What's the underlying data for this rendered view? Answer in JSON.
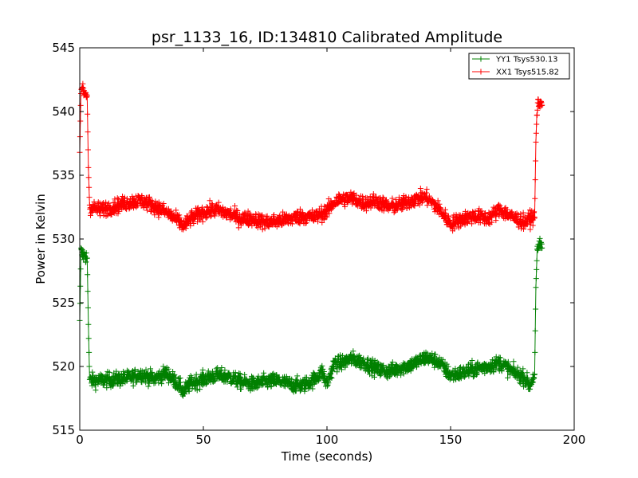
{
  "chart_data": {
    "type": "line",
    "title": "psr_1133_16, ID:134810 Calibrated Amplitude",
    "xlabel": "Time (seconds)",
    "ylabel": "Power in Kelvin",
    "xlim": [
      0,
      200
    ],
    "ylim": [
      515,
      545
    ],
    "xticks": [
      0,
      50,
      100,
      150,
      200
    ],
    "yticks": [
      515,
      520,
      525,
      530,
      535,
      540,
      545
    ],
    "grid": false,
    "legend_position": "top-right",
    "marker": "+",
    "series": [
      {
        "name": "YY1 Tsys530.13",
        "color": "#008000",
        "x": [
          0,
          0.5,
          1,
          1.5,
          2,
          2.5,
          3,
          3.5,
          4,
          8,
          15,
          20,
          25,
          30,
          35,
          40,
          42,
          45,
          50,
          55,
          60,
          65,
          70,
          75,
          80,
          85,
          90,
          95,
          98,
          100,
          103,
          105,
          110,
          115,
          120,
          125,
          130,
          135,
          140,
          145,
          150,
          155,
          160,
          165,
          170,
          175,
          180,
          182,
          184,
          184.5,
          185,
          185.5,
          186,
          186.5,
          187
        ],
        "y": [
          523.6,
          529.0,
          528.8,
          528.7,
          528.8,
          528.6,
          528.5,
          523.3,
          518.9,
          518.9,
          519.0,
          519.1,
          519.4,
          519.0,
          519.5,
          518.6,
          518.0,
          518.7,
          519.0,
          519.3,
          519.2,
          518.8,
          518.6,
          518.8,
          518.9,
          518.6,
          518.5,
          519.0,
          519.6,
          518.6,
          520.3,
          520.2,
          520.6,
          520.3,
          519.8,
          519.6,
          519.9,
          520.2,
          520.7,
          520.4,
          519.3,
          519.5,
          519.8,
          520.0,
          520.3,
          519.6,
          519.1,
          518.5,
          519.4,
          526.2,
          529.0,
          529.2,
          529.4,
          529.6,
          529.3
        ]
      },
      {
        "name": "XX1 Tsys515.82",
        "color": "#ff0000",
        "x": [
          0,
          0.5,
          1,
          1.5,
          2,
          2.5,
          3,
          3.5,
          4,
          8,
          15,
          20,
          25,
          30,
          35,
          40,
          42,
          45,
          50,
          55,
          60,
          65,
          70,
          75,
          80,
          85,
          90,
          95,
          98,
          100,
          103,
          105,
          110,
          115,
          120,
          125,
          130,
          135,
          140,
          145,
          150,
          155,
          160,
          165,
          170,
          175,
          180,
          182,
          184,
          184.5,
          185,
          185.5,
          186,
          186.5,
          187
        ],
        "y": [
          536.8,
          541.7,
          541.8,
          541.6,
          541.5,
          541.4,
          541.2,
          535.6,
          532.5,
          532.3,
          532.6,
          532.9,
          533.0,
          532.6,
          532.1,
          531.4,
          531.0,
          531.6,
          532.1,
          532.3,
          532.0,
          531.6,
          531.6,
          531.3,
          531.4,
          531.6,
          531.8,
          531.7,
          532.0,
          532.2,
          532.9,
          533.1,
          533.2,
          532.8,
          533.0,
          532.5,
          532.7,
          533.1,
          533.3,
          532.4,
          531.2,
          531.6,
          531.8,
          531.6,
          532.3,
          531.7,
          531.3,
          531.6,
          531.7,
          537.6,
          540.4,
          540.6,
          540.4,
          540.7,
          540.5
        ]
      }
    ]
  }
}
